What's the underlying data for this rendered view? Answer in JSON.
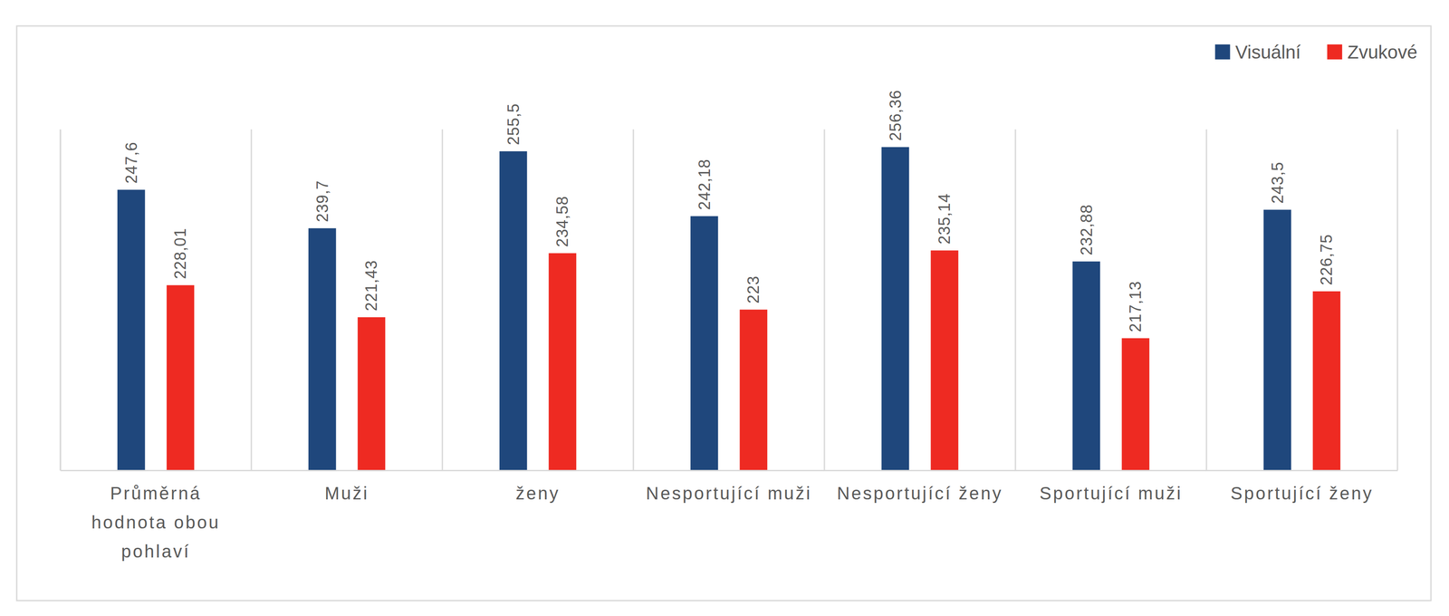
{
  "chart_data": {
    "type": "bar",
    "categories": [
      "Průměrná hodnota obou pohlaví",
      "Muži",
      "ženy",
      "Nesportující muži",
      "Nesportující ženy",
      "Sportující muži",
      "Sportující ženy"
    ],
    "series": [
      {
        "name": "Visuální",
        "color": "#1f477c",
        "values": [
          247.6,
          239.7,
          255.5,
          242.18,
          256.36,
          232.88,
          243.5
        ],
        "value_labels": [
          "247,6",
          "239,7",
          "255,5",
          "242,18",
          "256,36",
          "232,88",
          "243,5"
        ]
      },
      {
        "name": "Zvukové",
        "color": "#ee2a22",
        "values": [
          228.01,
          221.43,
          234.58,
          223,
          235.14,
          217.13,
          226.75
        ],
        "value_labels": [
          "228,01",
          "221,43",
          "234,58",
          "223",
          "235,14",
          "217,13",
          "226,75"
        ]
      }
    ],
    "ylim": [
      190,
      260
    ],
    "data_labels": true,
    "legend": "upper right",
    "tick_labels": "x"
  }
}
